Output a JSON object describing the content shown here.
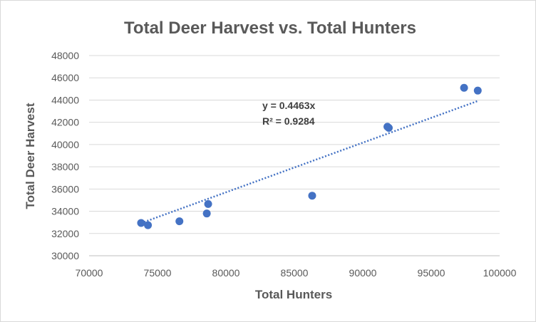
{
  "chart_data": {
    "type": "scatter",
    "title": "Total Deer Harvest vs. Total Hunters",
    "xlabel": "Total Hunters",
    "ylabel": "Total Deer Harvest",
    "xlim": [
      70000,
      100000
    ],
    "ylim": [
      30000,
      48000
    ],
    "xticks": [
      "70000",
      "75000",
      "80000",
      "85000",
      "90000",
      "95000",
      "100000"
    ],
    "yticks": [
      "30000",
      "32000",
      "34000",
      "36000",
      "38000",
      "40000",
      "42000",
      "44000",
      "46000",
      "48000"
    ],
    "grid": "horizontal",
    "point_color": "#4472c4",
    "trendline_color": "#4472c4",
    "points": [
      {
        "x": 73800,
        "y": 32950
      },
      {
        "x": 74300,
        "y": 32750
      },
      {
        "x": 76600,
        "y": 33100
      },
      {
        "x": 78600,
        "y": 33800
      },
      {
        "x": 78700,
        "y": 34650
      },
      {
        "x": 86300,
        "y": 35400
      },
      {
        "x": 91800,
        "y": 41600
      },
      {
        "x": 91900,
        "y": 41500
      },
      {
        "x": 97400,
        "y": 45100
      },
      {
        "x": 98400,
        "y": 44850
      }
    ],
    "trendline": {
      "slope": 0.4463,
      "intercept": 0,
      "x_range": [
        73800,
        98400
      ]
    },
    "annotations": [
      "y = 0.4463x",
      "R² = 0.9284"
    ]
  }
}
